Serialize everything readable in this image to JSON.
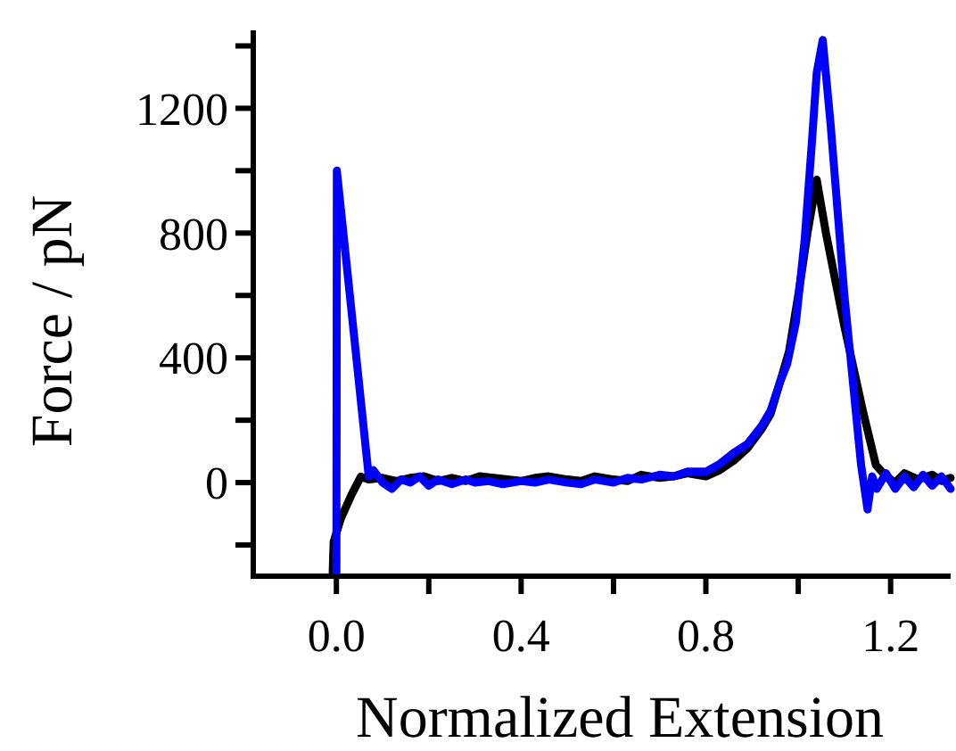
{
  "chart_data": {
    "type": "line",
    "xlabel": "Normalized Extension",
    "ylabel": "Force / pN",
    "xlim": [
      -0.18,
      1.33
    ],
    "ylim": [
      -300,
      1450
    ],
    "xticks": [
      {
        "value": 0,
        "label": "0.0"
      },
      {
        "value": 0.2,
        "label": null
      },
      0.4,
      {
        "value": 0.6,
        "label": null
      },
      0.8,
      {
        "value": 1.0,
        "label": null
      },
      1.2
    ],
    "yticks": [
      {
        "value": -200,
        "label": null
      },
      0,
      {
        "value": 200,
        "label": null
      },
      400,
      {
        "value": 600,
        "label": null
      },
      800,
      {
        "value": 1000,
        "label": null
      },
      1200,
      {
        "value": 1400,
        "label": null
      }
    ],
    "grid": false,
    "marker": "none",
    "line_style": "solid",
    "series": [
      {
        "color": "#000000",
        "x": [
          -0.008,
          -0.006,
          0.01,
          0.033,
          0.053,
          0.07,
          0.1,
          0.13,
          0.16,
          0.19,
          0.22,
          0.25,
          0.28,
          0.31,
          0.34,
          0.37,
          0.4,
          0.43,
          0.46,
          0.5,
          0.53,
          0.56,
          0.6,
          0.63,
          0.66,
          0.7,
          0.73,
          0.76,
          0.8,
          0.83,
          0.86,
          0.89,
          0.92,
          0.94,
          0.96,
          0.98,
          1.0,
          1.02,
          1.04,
          1.06,
          1.1,
          1.14,
          1.168,
          1.19,
          1.21,
          1.23,
          1.26,
          1.29,
          1.31,
          1.33
        ],
        "values": [
          -290,
          -190,
          -114,
          -38,
          19,
          10,
          15,
          5,
          15,
          20,
          5,
          15,
          5,
          20,
          15,
          10,
          5,
          15,
          20,
          10,
          5,
          20,
          10,
          5,
          25,
          15,
          20,
          30,
          20,
          40,
          70,
          110,
          170,
          220,
          320,
          420,
          600,
          800,
          971,
          800,
          500,
          230,
          57,
          20,
          0,
          30,
          10,
          25,
          5,
          15
        ]
      },
      {
        "color": "#0000ff",
        "x": [
          0,
          0.001,
          0.07,
          0.08,
          0.1,
          0.12,
          0.14,
          0.16,
          0.18,
          0.2,
          0.22,
          0.25,
          0.28,
          0.3,
          0.33,
          0.36,
          0.4,
          0.43,
          0.46,
          0.5,
          0.53,
          0.56,
          0.6,
          0.63,
          0.66,
          0.7,
          0.73,
          0.76,
          0.8,
          0.83,
          0.86,
          0.89,
          0.92,
          0.94,
          0.96,
          0.976,
          0.995,
          1.014,
          1.03,
          1.04,
          1.053,
          1.07,
          1.1,
          1.136,
          1.15,
          1.16,
          1.17,
          1.19,
          1.21,
          1.23,
          1.25,
          1.27,
          1.29,
          1.31,
          1.33
        ],
        "values": [
          -290,
          1000,
          20,
          40,
          0,
          -20,
          10,
          0,
          20,
          -10,
          10,
          -5,
          10,
          0,
          5,
          -5,
          5,
          0,
          10,
          0,
          -5,
          10,
          0,
          15,
          10,
          25,
          20,
          35,
          35,
          60,
          95,
          124,
          180,
          230,
          320,
          380,
          514,
          780,
          1100,
          1314,
          1419,
          1150,
          600,
          57,
          -86,
          20,
          -20,
          30,
          -20,
          20,
          -15,
          25,
          -10,
          20,
          -20
        ]
      }
    ]
  }
}
